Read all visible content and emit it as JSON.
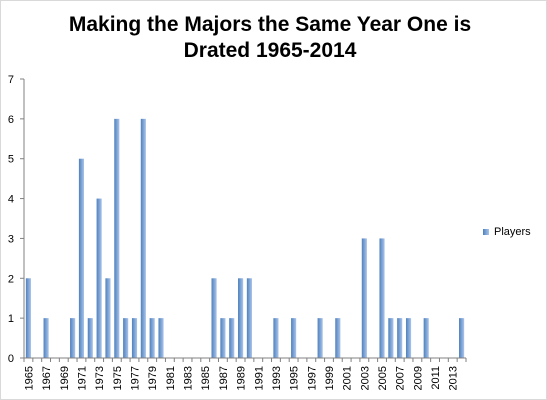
{
  "chart_data": {
    "type": "bar",
    "title": "Making the Majors the Same Year One is Drated 1965-2014",
    "xlabel": "",
    "ylabel": "",
    "ylim": [
      0,
      7
    ],
    "yticks": [
      0,
      1,
      2,
      3,
      4,
      5,
      6,
      7
    ],
    "grid": false,
    "legend_position": "right",
    "categories": [
      "1965",
      "1966",
      "1967",
      "1968",
      "1969",
      "1970",
      "1971",
      "1972",
      "1973",
      "1974",
      "1975",
      "1976",
      "1977",
      "1978",
      "1979",
      "1980",
      "1981",
      "1982",
      "1983",
      "1984",
      "1985",
      "1986",
      "1987",
      "1988",
      "1989",
      "1990",
      "1991",
      "1992",
      "1993",
      "1994",
      "1995",
      "1996",
      "1997",
      "1998",
      "1999",
      "2000",
      "2001",
      "2002",
      "2003",
      "2004",
      "2005",
      "2006",
      "2007",
      "2008",
      "2009",
      "2010",
      "2011",
      "2012",
      "2013",
      "2014"
    ],
    "x_tick_labels": [
      "1965",
      "1967",
      "1969",
      "1971",
      "1973",
      "1975",
      "1977",
      "1979",
      "1981",
      "1983",
      "1985",
      "1987",
      "1989",
      "1991",
      "1993",
      "1995",
      "1997",
      "1999",
      "2001",
      "2003",
      "2005",
      "2007",
      "2009",
      "2011",
      "2013"
    ],
    "series": [
      {
        "name": "Players",
        "color": "#4f81bd",
        "color_light": "#a9c4eb",
        "values": [
          2,
          0,
          1,
          0,
          0,
          1,
          5,
          1,
          4,
          2,
          6,
          1,
          1,
          6,
          1,
          1,
          0,
          0,
          0,
          0,
          0,
          2,
          1,
          1,
          2,
          2,
          0,
          0,
          1,
          0,
          1,
          0,
          0,
          1,
          0,
          1,
          0,
          0,
          3,
          0,
          3,
          1,
          1,
          1,
          0,
          1,
          0,
          0,
          0,
          1
        ]
      }
    ]
  }
}
